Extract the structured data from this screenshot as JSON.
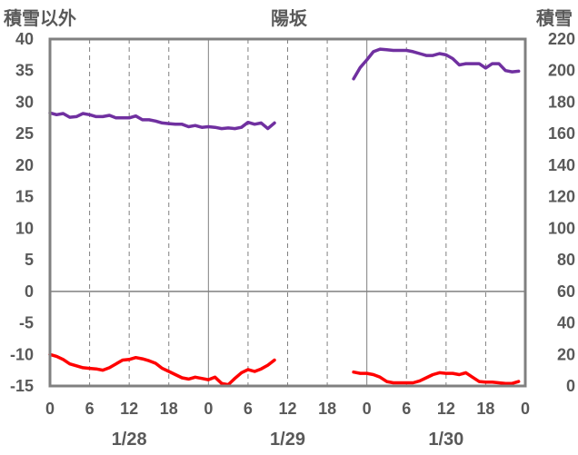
{
  "chart_data": {
    "type": "line",
    "title": "陽坂",
    "left_axis_label": "積雪以外",
    "right_axis_label": "積雪",
    "left_ylim": [
      -15,
      40
    ],
    "right_ylim": [
      0,
      220
    ],
    "left_yticks": [
      "40",
      "35",
      "30",
      "25",
      "20",
      "15",
      "10",
      "5",
      "0",
      "-5",
      "-10",
      "-15"
    ],
    "right_yticks": [
      "220",
      "200",
      "180",
      "160",
      "140",
      "120",
      "100",
      "80",
      "60",
      "40",
      "20",
      "0"
    ],
    "xlim": [
      0,
      72
    ],
    "x_tick_labels": [
      "0",
      "6",
      "12",
      "18",
      "0",
      "6",
      "12",
      "18",
      "0",
      "6",
      "12",
      "18",
      "0"
    ],
    "date_labels": [
      {
        "x": 12,
        "label": "1/28"
      },
      {
        "x": 36,
        "label": "1/29"
      },
      {
        "x": 60,
        "label": "1/30"
      }
    ],
    "grid": true,
    "colors": {
      "purple": "#7030A0",
      "red": "#FF0000",
      "axis": "#808080",
      "grid": "#808080",
      "text": "#595959"
    },
    "series": [
      {
        "color": "#7030A0",
        "axis": "left",
        "segments": [
          [
            [
              0,
              28.3
            ],
            [
              1,
              28.0
            ],
            [
              2,
              28.2
            ],
            [
              3,
              27.6
            ],
            [
              4,
              27.7
            ],
            [
              5,
              28.2
            ],
            [
              6,
              28.0
            ],
            [
              7,
              27.7
            ],
            [
              8,
              27.7
            ],
            [
              9,
              27.9
            ],
            [
              10,
              27.5
            ],
            [
              11,
              27.5
            ],
            [
              12,
              27.5
            ],
            [
              13,
              27.8
            ],
            [
              14,
              27.2
            ],
            [
              15,
              27.2
            ],
            [
              16,
              27.0
            ],
            [
              17,
              26.7
            ],
            [
              18,
              26.6
            ],
            [
              19,
              26.5
            ],
            [
              20,
              26.5
            ],
            [
              21,
              26.1
            ],
            [
              22,
              26.3
            ],
            [
              23,
              26.0
            ],
            [
              24,
              26.1
            ],
            [
              25,
              26.0
            ],
            [
              26,
              25.8
            ],
            [
              27,
              25.9
            ],
            [
              28,
              25.8
            ],
            [
              29,
              26.0
            ],
            [
              30,
              26.8
            ],
            [
              31,
              26.5
            ],
            [
              32,
              26.7
            ],
            [
              33,
              25.8
            ],
            [
              34,
              26.7
            ]
          ],
          [
            [
              46,
              33.7
            ],
            [
              47,
              35.5
            ],
            [
              48,
              36.7
            ],
            [
              49,
              38.0
            ],
            [
              50,
              38.4
            ],
            [
              51,
              38.3
            ],
            [
              52,
              38.2
            ],
            [
              53,
              38.2
            ],
            [
              54,
              38.2
            ],
            [
              55,
              38.0
            ],
            [
              56,
              37.7
            ],
            [
              57,
              37.4
            ],
            [
              58,
              37.4
            ],
            [
              59,
              37.7
            ],
            [
              60,
              37.5
            ],
            [
              61,
              36.9
            ],
            [
              62,
              35.9
            ],
            [
              63,
              36.1
            ],
            [
              64,
              36.1
            ],
            [
              65,
              36.1
            ],
            [
              66,
              35.4
            ],
            [
              67,
              36.1
            ],
            [
              68,
              36.1
            ],
            [
              69,
              35.0
            ],
            [
              70,
              34.8
            ],
            [
              71,
              34.9
            ]
          ]
        ]
      },
      {
        "color": "#FF0000",
        "axis": "left",
        "segments": [
          [
            [
              0,
              -10.0
            ],
            [
              1,
              -10.3
            ],
            [
              2,
              -10.8
            ],
            [
              3,
              -11.5
            ],
            [
              4,
              -11.8
            ],
            [
              5,
              -12.1
            ],
            [
              6,
              -12.2
            ],
            [
              7,
              -12.3
            ],
            [
              8,
              -12.5
            ],
            [
              9,
              -12.1
            ],
            [
              10,
              -11.5
            ],
            [
              11,
              -10.9
            ],
            [
              12,
              -10.8
            ],
            [
              13,
              -10.5
            ],
            [
              14,
              -10.7
            ],
            [
              15,
              -11.0
            ],
            [
              16,
              -11.4
            ],
            [
              17,
              -12.2
            ],
            [
              18,
              -12.7
            ],
            [
              19,
              -13.2
            ],
            [
              20,
              -13.7
            ],
            [
              21,
              -13.9
            ],
            [
              22,
              -13.6
            ],
            [
              23,
              -13.8
            ],
            [
              24,
              -14.0
            ],
            [
              25,
              -13.6
            ],
            [
              26,
              -14.6
            ],
            [
              27,
              -14.8
            ],
            [
              28,
              -13.8
            ],
            [
              29,
              -12.9
            ],
            [
              30,
              -12.4
            ],
            [
              31,
              -12.7
            ],
            [
              32,
              -12.3
            ],
            [
              33,
              -11.7
            ],
            [
              34,
              -10.9
            ]
          ],
          [
            [
              46,
              -12.8
            ],
            [
              47,
              -13.0
            ],
            [
              48,
              -13.0
            ],
            [
              49,
              -13.2
            ],
            [
              50,
              -13.6
            ],
            [
              51,
              -14.3
            ],
            [
              52,
              -14.5
            ],
            [
              53,
              -14.5
            ],
            [
              54,
              -14.5
            ],
            [
              55,
              -14.5
            ],
            [
              56,
              -14.2
            ],
            [
              57,
              -13.7
            ],
            [
              58,
              -13.2
            ],
            [
              59,
              -12.9
            ],
            [
              60,
              -13.0
            ],
            [
              61,
              -13.0
            ],
            [
              62,
              -13.2
            ],
            [
              63,
              -12.9
            ],
            [
              64,
              -13.6
            ],
            [
              65,
              -14.3
            ],
            [
              66,
              -14.4
            ],
            [
              67,
              -14.4
            ],
            [
              68,
              -14.5
            ],
            [
              69,
              -14.6
            ],
            [
              70,
              -14.6
            ],
            [
              71,
              -14.3
            ]
          ]
        ]
      }
    ]
  }
}
